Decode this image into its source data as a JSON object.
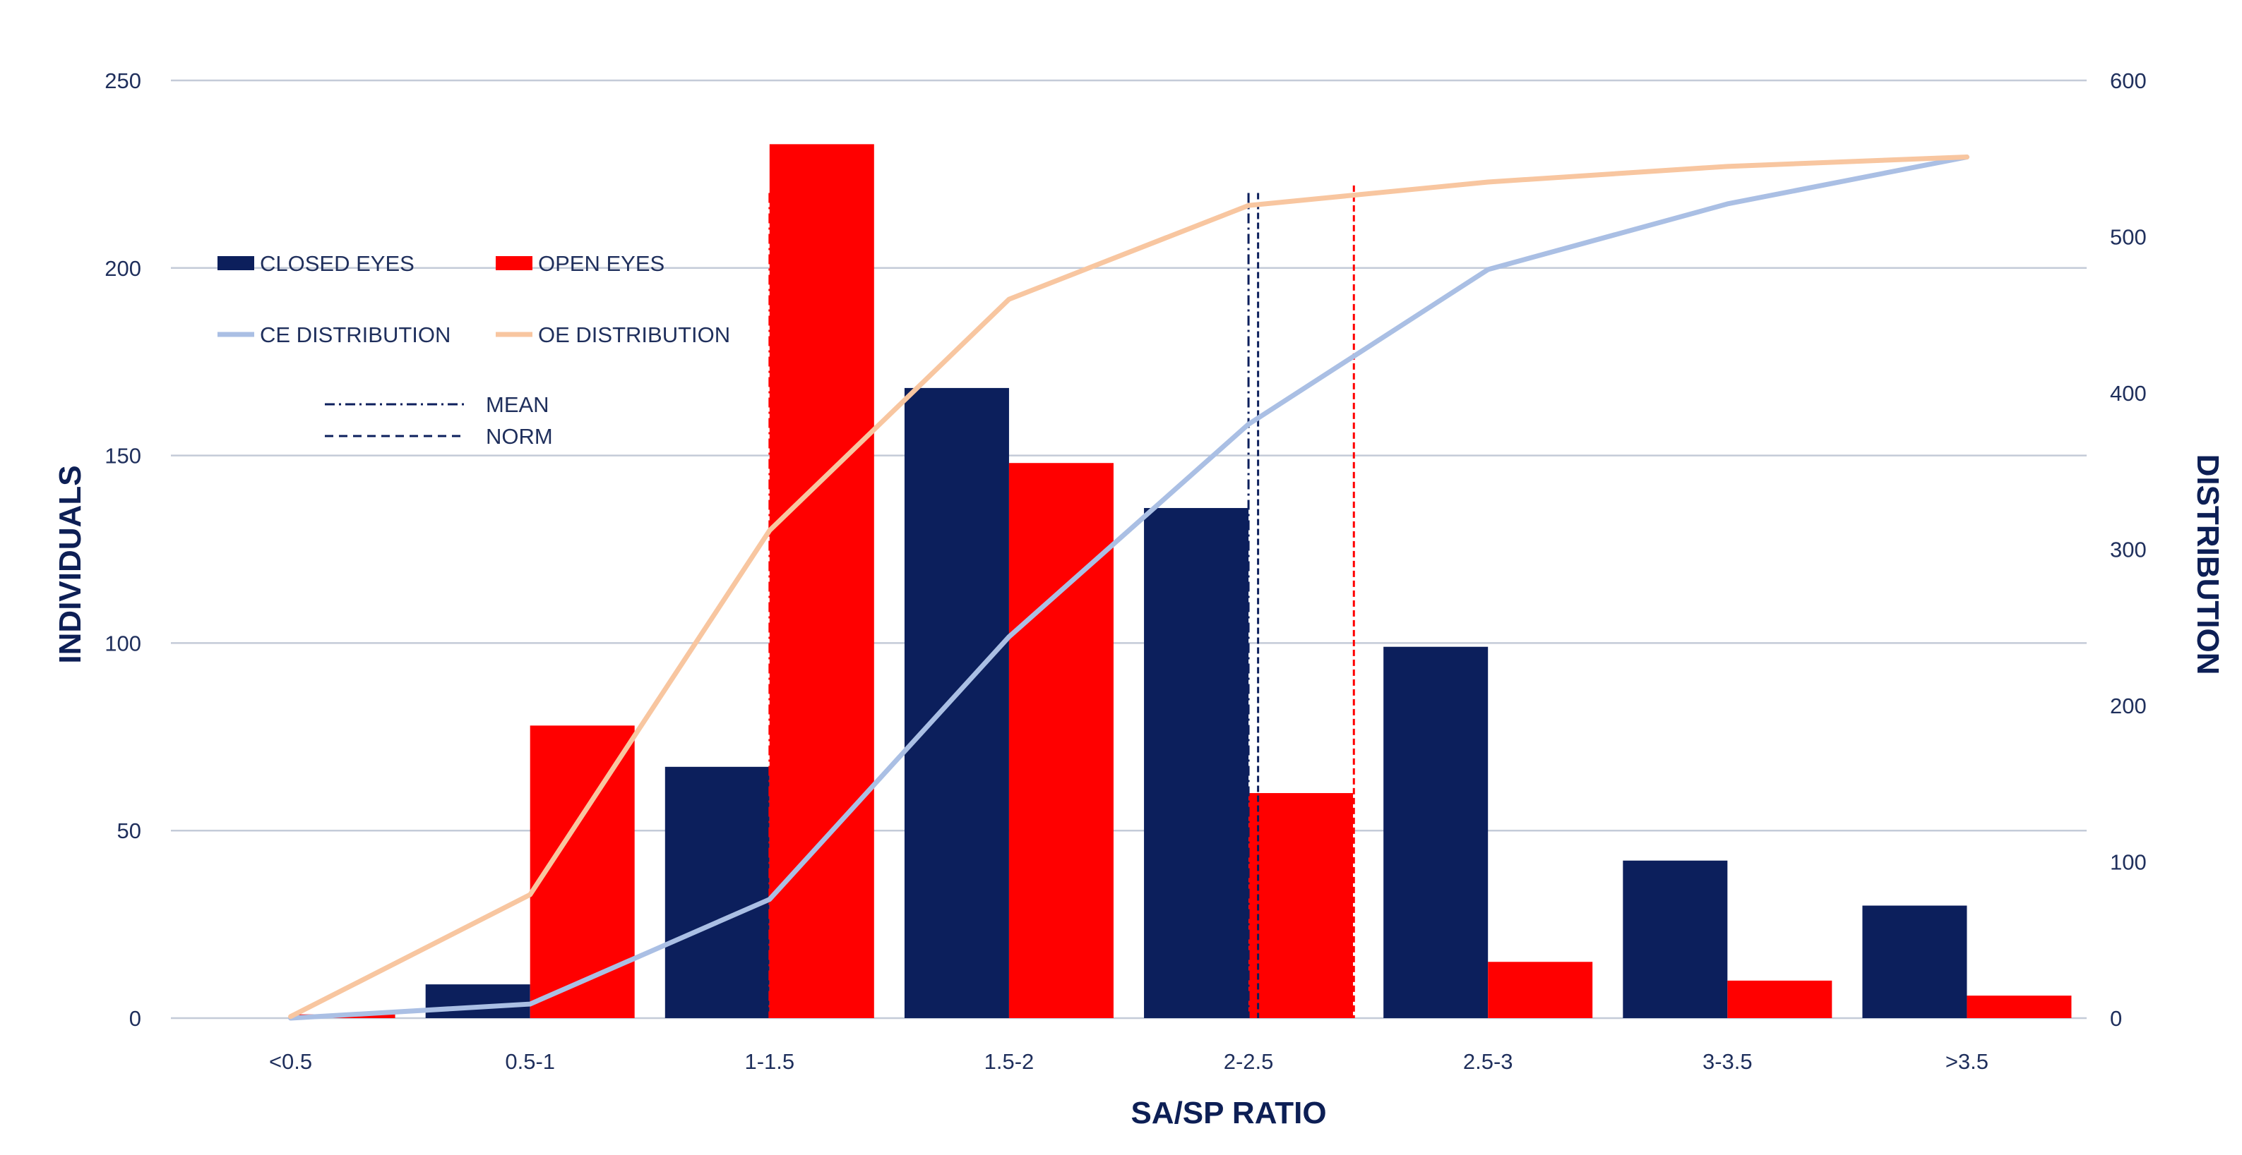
{
  "colors": {
    "closed_eyes": "#0c1f5c",
    "open_eyes": "#ff0000",
    "ce_distribution": "#aabfe4",
    "oe_distribution": "#f8c6a0",
    "grid": "#c4cbd8",
    "axis_text": "#1f2f5c"
  },
  "chart_data": {
    "type": "bar",
    "title": "",
    "xlabel": "SA/SP RATIO",
    "ylabel": "INDIVIDUALS",
    "y2label": "DISTRIBUTION",
    "categories": [
      "<0.5",
      "0.5-1",
      "1-1.5",
      "1.5-2",
      "2-2.5",
      "2.5-3",
      "3-3.5",
      ">3.5"
    ],
    "ylim": [
      0,
      250
    ],
    "yticks": [
      0,
      50,
      100,
      150,
      200,
      250
    ],
    "y2lim": [
      0,
      600
    ],
    "y2ticks": [
      0,
      100,
      200,
      300,
      400,
      500,
      600
    ],
    "series": [
      {
        "name": "CLOSED EYES",
        "type": "bar",
        "axis": "left",
        "values": [
          0,
          9,
          67,
          168,
          136,
          99,
          42,
          30
        ]
      },
      {
        "name": "OPEN EYES",
        "type": "bar",
        "axis": "left",
        "values": [
          1,
          78,
          233,
          148,
          60,
          15,
          10,
          6
        ]
      },
      {
        "name": "CE DISTRIBUTION",
        "type": "line",
        "axis": "right",
        "values": [
          0,
          9,
          76,
          244,
          380,
          479,
          521,
          551
        ]
      },
      {
        "name": "OE DISTRIBUTION",
        "type": "line",
        "axis": "right",
        "values": [
          1,
          79,
          312,
          460,
          520,
          535,
          545,
          551
        ]
      }
    ],
    "reference_lines": [
      {
        "legend": "MEAN",
        "group": "CLOSED EYES",
        "x": 2.5,
        "y_top": 220,
        "dash": "dashdot"
      },
      {
        "legend": "NORM",
        "group": "CLOSED EYES",
        "x": 2.52,
        "y_top": 220,
        "dash": "dashed"
      },
      {
        "legend": "MEAN",
        "group": "OPEN EYES",
        "x": 1.5,
        "y_top": 220,
        "dash": "dashdot"
      },
      {
        "legend": "NORM",
        "group": "OPEN EYES",
        "x": 2.72,
        "y_top": 222,
        "dash": "dashed"
      }
    ],
    "legend": [
      {
        "label": "CLOSED EYES",
        "kind": "bar",
        "series": "CLOSED EYES"
      },
      {
        "label": "OPEN EYES",
        "kind": "bar",
        "series": "OPEN EYES"
      },
      {
        "label": "CE DISTRIBUTION",
        "kind": "line",
        "series": "CE DISTRIBUTION"
      },
      {
        "label": "OE DISTRIBUTION",
        "kind": "line",
        "series": "OE DISTRIBUTION"
      },
      {
        "label": "MEAN",
        "kind": "dashdot"
      },
      {
        "label": "NORM",
        "kind": "dashed"
      }
    ],
    "legend_position": "top-left",
    "grid": true
  }
}
